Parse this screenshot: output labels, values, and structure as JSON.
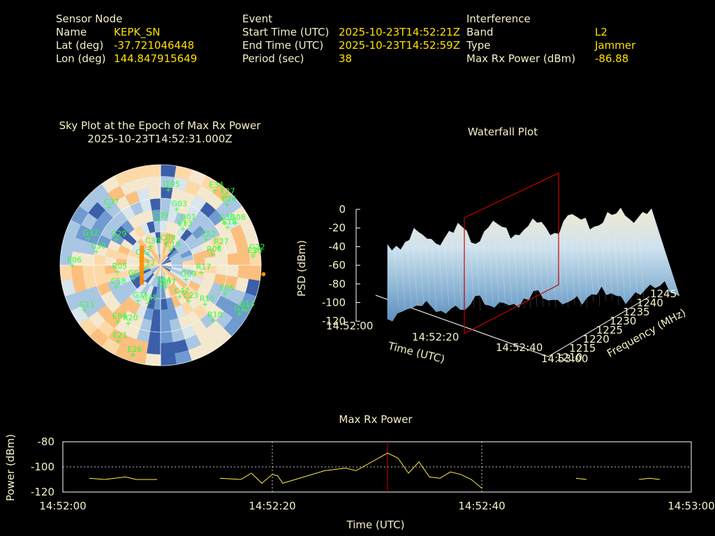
{
  "header": {
    "sensor": {
      "title": "Sensor Node",
      "rows": [
        {
          "label": "Name",
          "value": "KEPK_SN"
        },
        {
          "label": "Lat (deg)",
          "value": "-37.721046448"
        },
        {
          "label": "Lon (deg)",
          "value": "144.847915649"
        }
      ]
    },
    "event": {
      "title": "Event",
      "rows": [
        {
          "label": "Start Time (UTC)",
          "value": "2025-10-23T14:52:21Z"
        },
        {
          "label": "End Time (UTC)",
          "value": "2025-10-23T14:52:59Z"
        },
        {
          "label": "Period (sec)",
          "value": "38"
        }
      ]
    },
    "interference": {
      "title": "Interference",
      "rows": [
        {
          "label": "Band",
          "value": "L2"
        },
        {
          "label": "Type",
          "value": "Jammer"
        },
        {
          "label": "Max Rx Power (dBm)",
          "value": "-86.88"
        }
      ]
    }
  },
  "colors": {
    "label_text": "#f5f0c8",
    "value_text": "#ffe000",
    "satellite_marker": "#33ff33",
    "power_line": "#ffee44",
    "cursor_line": "#cc0000",
    "jammer_direction": "#ff8c00",
    "sky_warm": "#fbbf7e",
    "sky_cool": "#3b5fa8"
  },
  "sky_plot": {
    "title_line1": "Sky Plot at the Epoch of Max Rx Power",
    "title_line2": "2025-10-23T14:52:31.000Z",
    "satellites": [
      "E34",
      "E27",
      "J195",
      "E24",
      "G03",
      "C37",
      "C33",
      "G08",
      "E18",
      "G01",
      "C59",
      "E13",
      "C52",
      "R27",
      "G29",
      "R06",
      "C30",
      "G32",
      "G22",
      "E36",
      "E06",
      "R05",
      "G04",
      "C38",
      "C09",
      "C19",
      "C22",
      "G09",
      "R17",
      "G07",
      "S04",
      "C13",
      "C45",
      "G31",
      "C23",
      "C47",
      "R15",
      "C58",
      "E05",
      "G11",
      "R20",
      "E04",
      "R18",
      "G13",
      "E21",
      "G14",
      "E26"
    ],
    "satellite_positions_deg": [
      {
        "id": "E34",
        "az": 35,
        "el": 8
      },
      {
        "id": "E27",
        "az": 43,
        "el": 6
      },
      {
        "id": "J195",
        "az": 5,
        "el": 22
      },
      {
        "id": "E24",
        "az": 47,
        "el": 10
      },
      {
        "id": "G03",
        "az": 15,
        "el": 38
      },
      {
        "id": "C37",
        "az": 318,
        "el": 20
      },
      {
        "id": "C33",
        "az": 56,
        "el": 22
      },
      {
        "id": "G08",
        "az": 60,
        "el": 14
      },
      {
        "id": "E18",
        "az": 60,
        "el": 22
      },
      {
        "id": "G01",
        "az": 29,
        "el": 46
      },
      {
        "id": "C59",
        "az": 356,
        "el": 50
      },
      {
        "id": "E13",
        "az": 30,
        "el": 52
      },
      {
        "id": "C52",
        "az": 60,
        "el": 44
      },
      {
        "id": "R27",
        "az": 72,
        "el": 36
      },
      {
        "id": "G29",
        "az": 300,
        "el": 43
      },
      {
        "id": "R06",
        "az": 78,
        "el": 44
      },
      {
        "id": "C30",
        "az": 282,
        "el": 30
      },
      {
        "id": "G32",
        "az": 290,
        "el": 20
      },
      {
        "id": "G22",
        "az": 82,
        "el": 6
      },
      {
        "id": "E36",
        "az": 84,
        "el": 8
      },
      {
        "id": "E06",
        "az": 270,
        "el": 10
      },
      {
        "id": "R05",
        "az": 262,
        "el": 50
      },
      {
        "id": "G04",
        "az": 245,
        "el": 62
      },
      {
        "id": "C38",
        "az": 330,
        "el": 70
      },
      {
        "id": "C09",
        "az": 10,
        "el": 70
      },
      {
        "id": "C19",
        "az": 30,
        "el": 74
      },
      {
        "id": "C22",
        "az": 290,
        "el": 70
      },
      {
        "id": "G09",
        "az": 120,
        "el": 65
      },
      {
        "id": "R17",
        "az": 100,
        "el": 54
      },
      {
        "id": "G07",
        "az": 170,
        "el": 70
      },
      {
        "id": "S04",
        "az": 180,
        "el": 72
      },
      {
        "id": "C13",
        "az": 260,
        "el": 75
      },
      {
        "id": "C45",
        "az": 200,
        "el": 54
      },
      {
        "id": "G31",
        "az": 214,
        "el": 52
      },
      {
        "id": "C23",
        "az": 143,
        "el": 50
      },
      {
        "id": "C47",
        "az": 150,
        "el": 58
      },
      {
        "id": "R15",
        "az": 132,
        "el": 38
      },
      {
        "id": "C58",
        "az": 245,
        "el": 45
      },
      {
        "id": "E05",
        "az": 114,
        "el": 28
      },
      {
        "id": "G11",
        "az": 240,
        "el": 10
      },
      {
        "id": "R20",
        "az": 210,
        "el": 30
      },
      {
        "id": "E04",
        "az": 218,
        "el": 26
      },
      {
        "id": "R18",
        "az": 137,
        "el": 23
      },
      {
        "id": "G13",
        "az": 122,
        "el": 8
      },
      {
        "id": "E21",
        "az": 210,
        "el": 12
      },
      {
        "id": "G14",
        "az": 118,
        "el": 6
      },
      {
        "id": "E26",
        "az": 198,
        "el": 6
      }
    ],
    "jammer_azimuth_deg": 95
  },
  "waterfall": {
    "title": "Waterfall Plot",
    "zlabel": "PSD (dBm)",
    "xlabel": "Time (UTC)",
    "ylabel": "Frequency (MHz)",
    "z_ticks": [
      "0",
      "-20",
      "-40",
      "-60",
      "-80",
      "-100",
      "-120"
    ],
    "time_ticks": [
      "14:52:00",
      "14:52:20",
      "14:52:40",
      "14:53:00"
    ],
    "freq_ticks": [
      "1210",
      "1215",
      "1220",
      "1225",
      "1230",
      "1235",
      "1240",
      "1245"
    ]
  },
  "chart_data": {
    "type": "line",
    "title": "Max Rx Power",
    "xlabel": "Time (UTC)",
    "ylabel": "Power (dBm)",
    "x_ticks": [
      "14:52:00",
      "14:52:20",
      "14:52:40",
      "14:53:00"
    ],
    "y_ticks": [
      "-80",
      "-100",
      "-120"
    ],
    "xlim_sec": [
      0,
      60
    ],
    "ylim": [
      -120,
      -80
    ],
    "grid": true,
    "marker_time_sec": 31,
    "segments": [
      [
        [
          2.5,
          -109
        ],
        [
          4,
          -110
        ],
        [
          6,
          -108
        ],
        [
          7,
          -110
        ],
        [
          9,
          -110
        ]
      ],
      [
        [
          15,
          -109
        ],
        [
          17,
          -110
        ],
        [
          18,
          -105
        ],
        [
          19,
          -113
        ],
        [
          20,
          -106
        ],
        [
          20.5,
          -107
        ],
        [
          21,
          -113
        ],
        [
          25,
          -103
        ],
        [
          27,
          -101
        ],
        [
          28,
          -103
        ],
        [
          31,
          -89
        ],
        [
          32,
          -93
        ],
        [
          33,
          -105
        ],
        [
          34,
          -96
        ],
        [
          35,
          -108
        ],
        [
          36,
          -109
        ],
        [
          37,
          -104
        ],
        [
          38,
          -106
        ],
        [
          39,
          -110
        ],
        [
          40,
          -117
        ]
      ],
      [
        [
          49,
          -109
        ],
        [
          50,
          -110
        ]
      ],
      [
        [
          55,
          -110
        ],
        [
          56,
          -109
        ],
        [
          57,
          -110
        ]
      ]
    ]
  }
}
